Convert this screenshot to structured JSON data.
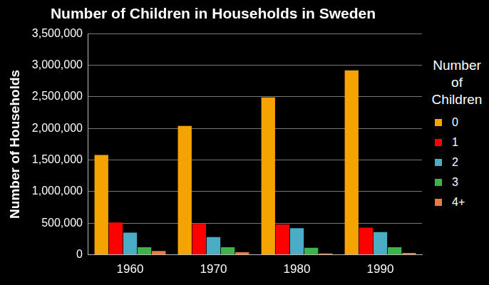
{
  "chart_data": {
    "type": "bar",
    "title": "Number of Children in Households in Sweden",
    "y_label": "Number of Households",
    "categories": [
      "1960",
      "1970",
      "1980",
      "1990"
    ],
    "series": [
      {
        "name": "0",
        "color": "#f5a300",
        "values": [
          1580000,
          2040000,
          2490000,
          2920000
        ]
      },
      {
        "name": "1",
        "color": "#ff0000",
        "values": [
          510000,
          490000,
          480000,
          430000
        ]
      },
      {
        "name": "2",
        "color": "#4bacc6",
        "values": [
          350000,
          280000,
          420000,
          360000
        ]
      },
      {
        "name": "3",
        "color": "#3cb44b",
        "values": [
          120000,
          120000,
          110000,
          120000
        ]
      },
      {
        "name": "4+",
        "color": "#f07a3c",
        "values": [
          60000,
          40000,
          20000,
          30000
        ]
      }
    ],
    "ylim": [
      0,
      3500000
    ],
    "yticks": [
      0,
      {
        "value": 500000,
        "label": "500,000"
      },
      {
        "value": 1000000,
        "label": "1,000,000"
      },
      {
        "value": 1500000,
        "label": "1,500,000"
      },
      {
        "value": 2000000,
        "label": "2,000,000"
      },
      {
        "value": 2500000,
        "label": "2,500,000"
      },
      {
        "value": 3000000,
        "label": "3,000,000"
      },
      {
        "value": 3500000,
        "label": "3,500,000"
      }
    ],
    "grid": true,
    "legend": "right",
    "legend_title": "Number of Children"
  }
}
